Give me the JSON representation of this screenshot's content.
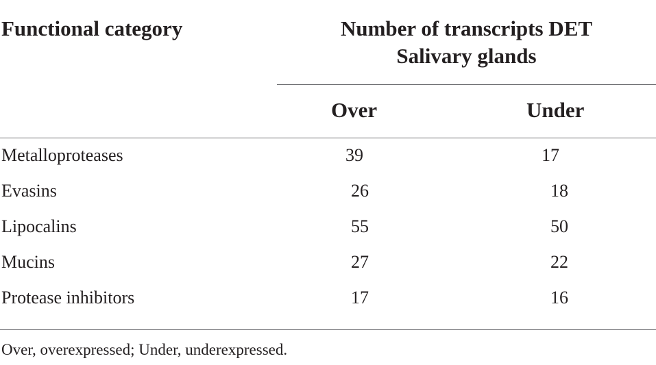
{
  "table": {
    "header": {
      "category_label": "Functional category",
      "group_line1": "Number of transcripts DET",
      "group_line2": "Salivary glands",
      "over_label": "Over",
      "under_label": "Under"
    },
    "rows": [
      {
        "category": "Metalloproteases",
        "over": "39",
        "under": "17"
      },
      {
        "category": "Evasins",
        "over": "26",
        "under": "18"
      },
      {
        "category": "Lipocalins",
        "over": "55",
        "under": "50"
      },
      {
        "category": "Mucins",
        "over": "27",
        "under": "22"
      },
      {
        "category": "Protease inhibitors",
        "over": "17",
        "under": "16"
      }
    ],
    "footnote": "Over, overexpressed; Under, underexpressed."
  }
}
